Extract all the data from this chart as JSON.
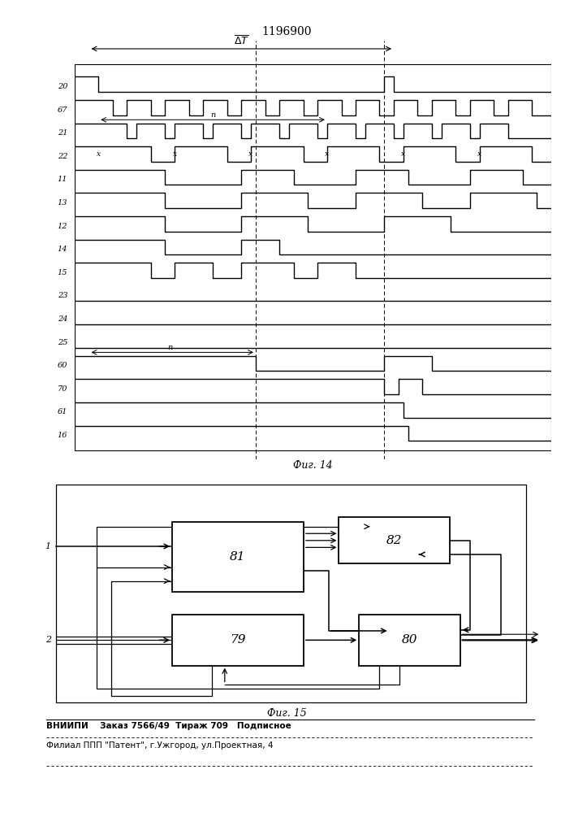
{
  "title": "1196900",
  "fig14_caption": "Фиг. 14",
  "fig15_caption": "Фиг. 15",
  "footer_line1": "ВНИИПИ    Заказ 7566/49  Тираж 709   Подписное",
  "footer_line2": "Филиал ППП \"Патент\", г.Ужгород, ул.Проектная, 4",
  "signal_labels": [
    "20",
    "67",
    "21",
    "22",
    "11",
    "13",
    "12",
    "14",
    "15",
    "23",
    "24",
    "25",
    "60",
    "70",
    "61",
    "16"
  ]
}
